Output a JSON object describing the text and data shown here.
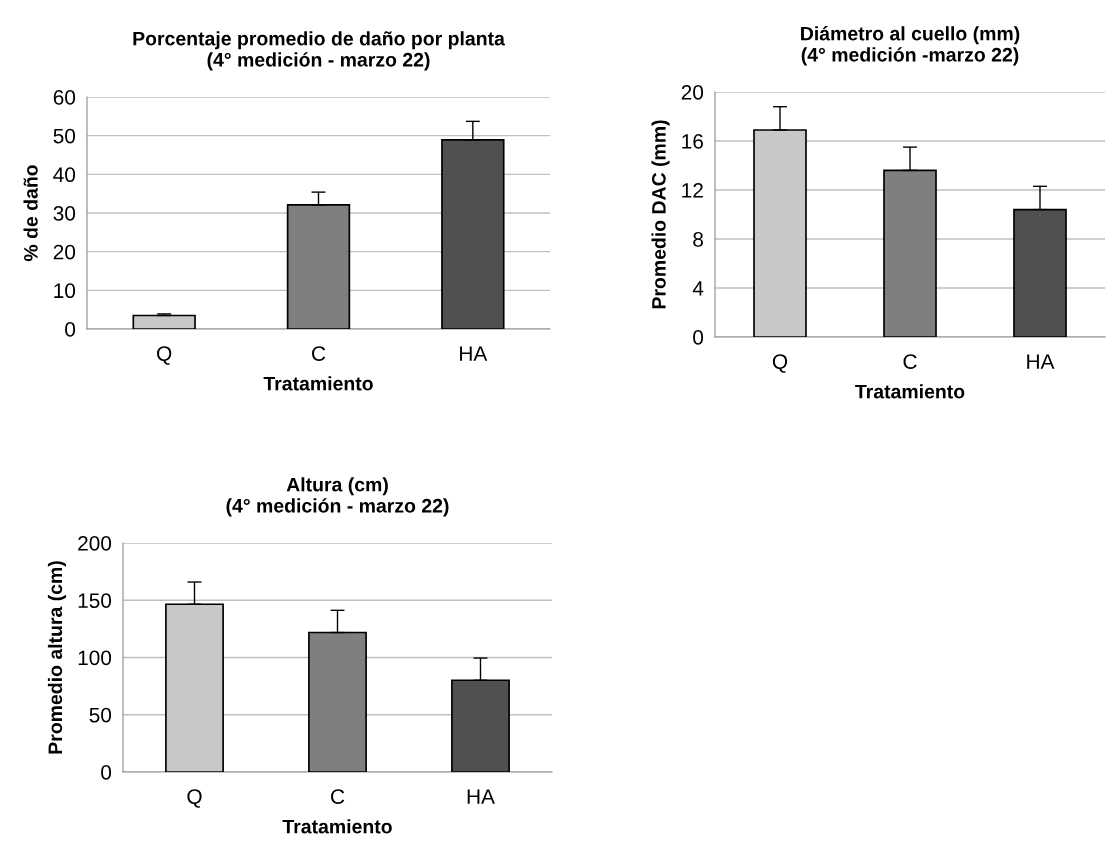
{
  "chart_data": [
    {
      "type": "bar",
      "title": "Porcentaje promedio de daño por planta\n(4° medición - marzo 22)",
      "xlabel": "Tratamiento",
      "ylabel": "% de daño",
      "categories": [
        "Q",
        "C",
        "HA"
      ],
      "values": [
        3.5,
        32.1,
        48.9
      ],
      "colors": [
        "#c8c8c8",
        "#7f7f7f",
        "#505050"
      ],
      "errors": [
        [
          3.5,
          3.9
        ],
        [
          32.1,
          35.4
        ],
        [
          48.9,
          53.7
        ]
      ],
      "ylim": [
        0,
        60
      ],
      "yticks": [
        0,
        10,
        20,
        30,
        40,
        50,
        60
      ],
      "grid": "y"
    },
    {
      "type": "bar",
      "title": "Diámetro al cuello (mm)\n(4° medición -marzo 22)",
      "xlabel": "Tratamiento",
      "ylabel": "Promedio DAC (mm)",
      "categories": [
        "Q",
        "C",
        "HA"
      ],
      "values": [
        16.9,
        13.6,
        10.4
      ],
      "colors": [
        "#c8c8c8",
        "#7f7f7f",
        "#505050"
      ],
      "errors": [
        [
          16.9,
          18.8
        ],
        [
          13.6,
          15.5
        ],
        [
          10.4,
          12.3
        ]
      ],
      "ylim": [
        0,
        20
      ],
      "yticks": [
        0,
        4,
        8,
        12,
        16,
        20
      ],
      "grid": "y"
    },
    {
      "type": "bar",
      "title": "Altura (cm)\n(4° medición - marzo 22)",
      "xlabel": "Tratamiento",
      "ylabel": "Promedio altura (cm)",
      "categories": [
        "Q",
        "C",
        "HA"
      ],
      "values": [
        146.5,
        121.8,
        80.1
      ],
      "colors": [
        "#c8c8c8",
        "#7f7f7f",
        "#505050"
      ],
      "errors": [
        [
          146.5,
          165.9
        ],
        [
          121.8,
          141.2
        ],
        [
          80.1,
          99.5
        ]
      ],
      "ylim": [
        0,
        200
      ],
      "yticks": [
        0,
        50,
        100,
        150,
        200
      ],
      "grid": "y"
    }
  ]
}
